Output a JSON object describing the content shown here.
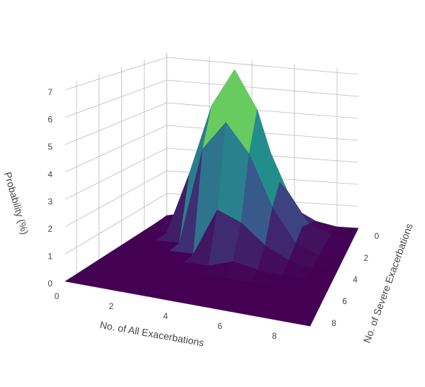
{
  "chart_data": {
    "type": "surface",
    "xlabel": "No. of All Exacerbations",
    "ylabel": "No. of Severe Exacerbations",
    "zlabel": "Probability (%)",
    "x": [
      0,
      1,
      2,
      3,
      4,
      5,
      6,
      7,
      8,
      9
    ],
    "y": [
      0,
      1,
      2,
      3,
      4,
      5,
      6,
      7,
      8,
      9
    ],
    "z": [
      [
        0.03,
        0.2,
        0.7,
        1.5,
        1.9,
        1.5,
        0.7,
        0.2,
        0,
        0
      ],
      [
        0,
        0.5,
        1.9,
        4.0,
        5.2,
        4.0,
        1.9,
        0.5,
        0.1,
        0
      ],
      [
        0,
        0,
        2.6,
        5.6,
        7.2,
        5.6,
        2.6,
        0.8,
        0.1,
        0
      ],
      [
        0,
        0,
        0,
        4.0,
        5.2,
        4.0,
        1.9,
        0.5,
        0.1,
        0
      ],
      [
        0,
        0,
        0,
        0,
        1.9,
        1.5,
        0.7,
        0.2,
        0,
        0
      ],
      [
        0,
        0,
        0,
        0,
        0,
        0.3,
        0.1,
        0,
        0,
        0
      ],
      [
        0,
        0,
        0,
        0,
        0,
        0,
        0,
        0,
        0,
        0
      ],
      [
        0,
        0,
        0,
        0,
        0,
        0,
        0,
        0,
        0,
        0
      ],
      [
        0,
        0,
        0,
        0,
        0,
        0,
        0,
        0,
        0,
        0
      ],
      [
        0,
        0,
        0,
        0,
        0,
        0,
        0,
        0,
        0,
        0
      ]
    ],
    "colorscale": [
      "#440154",
      "#3b528b",
      "#21918c",
      "#5ec962",
      "#fde725"
    ],
    "xlim": [
      0,
      9
    ],
    "ylim": [
      0,
      9
    ],
    "zlim": [
      0,
      7.2
    ],
    "xticks": [
      0,
      2,
      4,
      6,
      8
    ],
    "yticks": [
      0,
      2,
      4,
      6,
      8
    ],
    "zticks": [
      0,
      1,
      2,
      3,
      4,
      5,
      6,
      7
    ],
    "grid": true
  }
}
